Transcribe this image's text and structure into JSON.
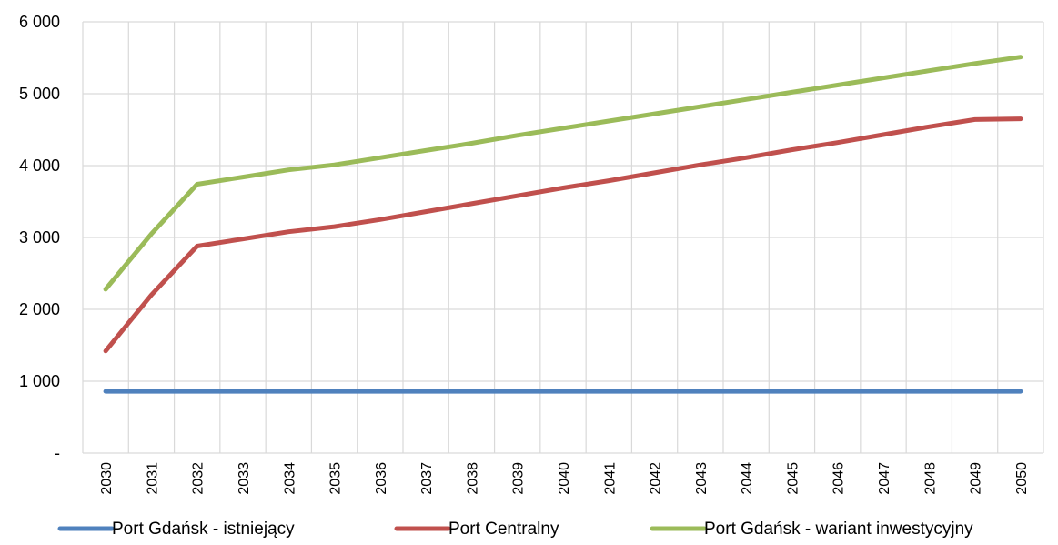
{
  "chart_data": {
    "type": "line",
    "title": "",
    "xlabel": "",
    "ylabel": "",
    "x": [
      "2030",
      "2031",
      "2032",
      "2033",
      "2034",
      "2035",
      "2036",
      "2037",
      "2038",
      "2039",
      "2040",
      "2041",
      "2042",
      "2043",
      "2044",
      "2045",
      "2046",
      "2047",
      "2048",
      "2049",
      "2050"
    ],
    "ylim": [
      0,
      6000
    ],
    "yticks": [
      {
        "value": 0,
        "label": "-"
      },
      {
        "value": 1000,
        "label": "1 000"
      },
      {
        "value": 2000,
        "label": "2 000"
      },
      {
        "value": 3000,
        "label": "3 000"
      },
      {
        "value": 4000,
        "label": "4 000"
      },
      {
        "value": 5000,
        "label": "5 000"
      },
      {
        "value": 6000,
        "label": "6 000"
      }
    ],
    "grid": true,
    "legend_position": "bottom",
    "series": [
      {
        "name": "Port Gdańsk - istniejący",
        "color": "#4f81bd",
        "values": [
          860,
          860,
          860,
          860,
          860,
          860,
          860,
          860,
          860,
          860,
          860,
          860,
          860,
          860,
          860,
          860,
          860,
          860,
          860,
          860,
          860
        ]
      },
      {
        "name": "Port Centralny",
        "color": "#c0504d",
        "values": [
          1420,
          2200,
          2880,
          2980,
          3080,
          3150,
          3250,
          3360,
          3470,
          3580,
          3690,
          3790,
          3900,
          4010,
          4110,
          4220,
          4320,
          4430,
          4540,
          4640,
          4650
        ]
      },
      {
        "name": "Port Gdańsk - wariant inwestycyjny",
        "color": "#9bbb59",
        "values": [
          2280,
          3050,
          3740,
          3840,
          3940,
          4010,
          4110,
          4210,
          4310,
          4420,
          4520,
          4620,
          4720,
          4820,
          4920,
          5020,
          5120,
          5220,
          5320,
          5420,
          5510
        ]
      }
    ]
  }
}
